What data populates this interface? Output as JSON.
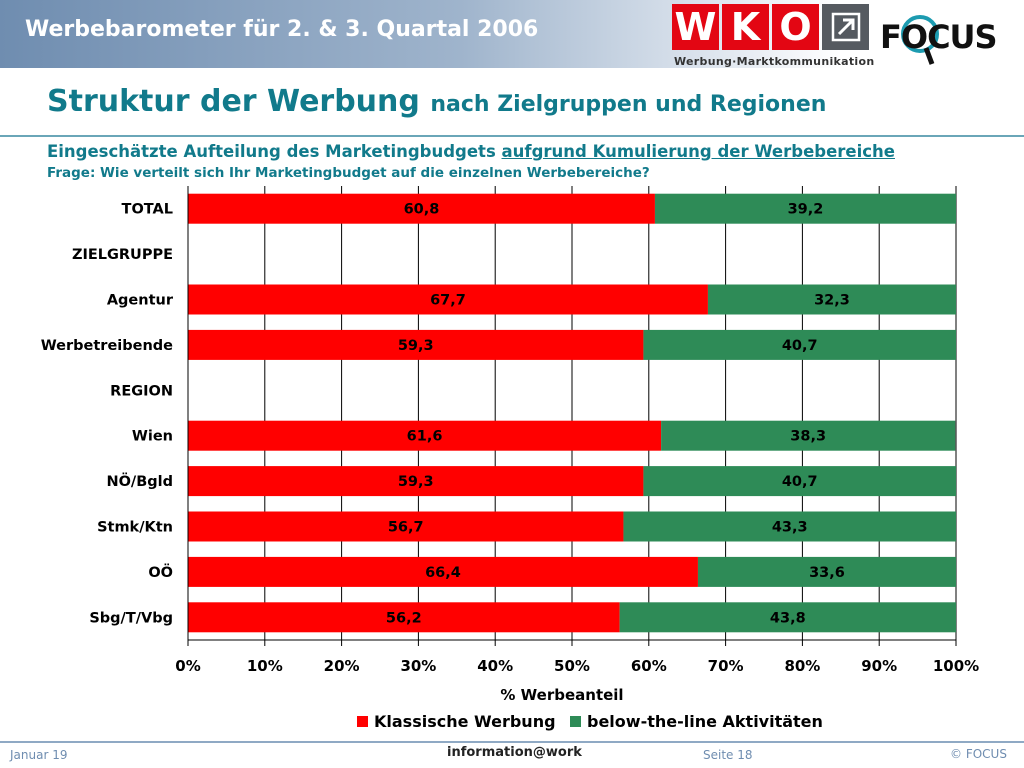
{
  "header": {
    "title": "Werbebarometer für 2. & 3. Quartal 2006",
    "wko_letters": [
      "W",
      "K",
      "O"
    ],
    "wko_subtitle": "Werbung·Marktkommunikation",
    "focus_logo": "FOCUS"
  },
  "slide": {
    "title_main": "Struktur der Werbung",
    "title_rest": "nach Zielgruppen und Regionen",
    "subtitle_plain": "Eingeschätzte Aufteilung des Marketingbudgets",
    "subtitle_underlined": "aufgrund Kumulierung der Werbebereiche",
    "question": "Frage: Wie verteilt sich Ihr Marketingbudget auf die einzelnen Werbebereiche?"
  },
  "chart_data": {
    "type": "bar",
    "orientation": "horizontal",
    "stacked": true,
    "categories": [
      "TOTAL",
      "ZIELGRUPPE",
      "Agentur",
      "Werbetreibende",
      "REGION",
      "Wien",
      "NÖ/Bgld",
      "Stmk/Ktn",
      "OÖ",
      "Sbg/T/Vbg"
    ],
    "series": [
      {
        "name": "Klassische Werbung",
        "color": "#ff0000",
        "values": [
          60.8,
          null,
          67.7,
          59.3,
          null,
          61.6,
          59.3,
          56.7,
          66.4,
          56.2
        ],
        "labels": [
          "60,8",
          "",
          "67,7",
          "59,3",
          "",
          "61,6",
          "59,3",
          "56,7",
          "66,4",
          "56,2"
        ]
      },
      {
        "name": "below-the-line Aktivitäten",
        "color": "#2e8b57",
        "values": [
          39.2,
          null,
          32.3,
          40.7,
          null,
          38.3,
          40.7,
          43.3,
          33.6,
          43.8
        ],
        "labels": [
          "39,2",
          "",
          "32,3",
          "40,7",
          "",
          "38,3",
          "40,7",
          "43,3",
          "33,6",
          "43,8"
        ]
      }
    ],
    "xlim": [
      0,
      100
    ],
    "xticks": [
      "0%",
      "10%",
      "20%",
      "30%",
      "40%",
      "50%",
      "60%",
      "70%",
      "80%",
      "90%",
      "100%"
    ],
    "xlabel": "% Werbeanteil",
    "grid": true,
    "legend_position": "bottom"
  },
  "footer": {
    "date": "Januar 19",
    "center": "information@work",
    "page": "Seite 18",
    "copyright": "© FOCUS"
  }
}
